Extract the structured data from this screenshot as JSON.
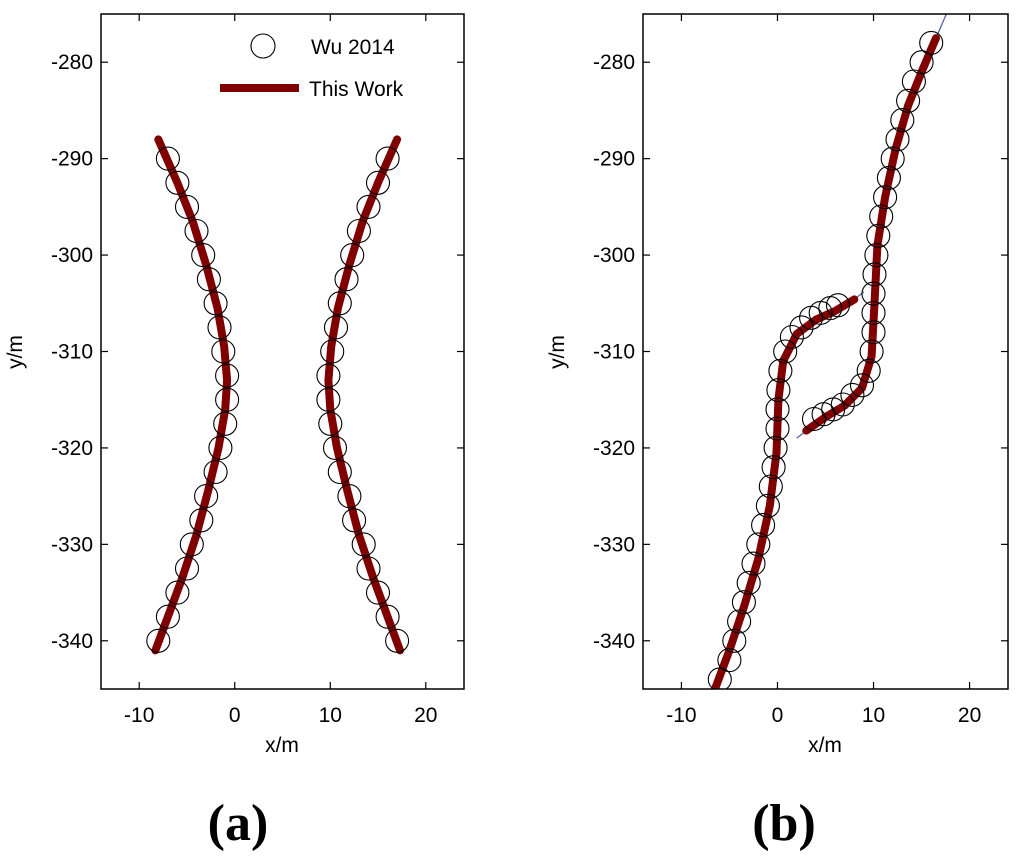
{
  "colors": {
    "this_work": "#800000",
    "thin_line": "#5566aa",
    "marker_edge": "#000000"
  },
  "chart_data": [
    {
      "type": "line",
      "panel_caption": "(a)",
      "xlabel": "x/m",
      "ylabel": "y/m",
      "xlim": [
        -14,
        24
      ],
      "ylim": [
        -345,
        -275
      ],
      "xticks": [
        -10,
        0,
        10,
        20
      ],
      "yticks": [
        -340,
        -330,
        -320,
        -310,
        -300,
        -290,
        -280
      ],
      "xtick_labels": [
        "-10",
        "0",
        "10",
        "20"
      ],
      "ytick_labels": [
        "-340",
        "-330",
        "-320",
        "-310",
        "-300",
        "-290",
        "-280"
      ],
      "legend": {
        "placement": "top-right",
        "entries": [
          "Wu 2014",
          "This Work"
        ]
      },
      "series": [
        {
          "name": "Wu 2014",
          "style": "markers",
          "points": [
            [
              -8,
              -340
            ],
            [
              -7,
              -337.5
            ],
            [
              -6,
              -335
            ],
            [
              -5,
              -332.5
            ],
            [
              -4.5,
              -330
            ],
            [
              -3.5,
              -327.5
            ],
            [
              -3,
              -325
            ],
            [
              -2,
              -322.5
            ],
            [
              -1.5,
              -320
            ],
            [
              -1,
              -317.5
            ],
            [
              -0.8,
              -315
            ],
            [
              -0.8,
              -312.5
            ],
            [
              -1.2,
              -310
            ],
            [
              -1.6,
              -307.5
            ],
            [
              -2,
              -305
            ],
            [
              -2.7,
              -302.5
            ],
            [
              -3.3,
              -300
            ],
            [
              -4,
              -297.5
            ],
            [
              -5,
              -295
            ],
            [
              -6,
              -292.5
            ],
            [
              -7,
              -290
            ],
            [
              17,
              -340
            ],
            [
              16,
              -337.5
            ],
            [
              15,
              -335
            ],
            [
              14,
              -332.5
            ],
            [
              13.5,
              -330
            ],
            [
              12.5,
              -327.5
            ],
            [
              12,
              -325
            ],
            [
              11,
              -322.5
            ],
            [
              10.5,
              -320
            ],
            [
              10,
              -317.5
            ],
            [
              9.8,
              -315
            ],
            [
              9.8,
              -312.5
            ],
            [
              10.2,
              -310
            ],
            [
              10.6,
              -307.5
            ],
            [
              11,
              -305
            ],
            [
              11.7,
              -302.5
            ],
            [
              12.3,
              -300
            ],
            [
              13,
              -297.5
            ],
            [
              14,
              -295
            ],
            [
              15,
              -292.5
            ],
            [
              16,
              -290
            ]
          ]
        },
        {
          "name": "This Work",
          "style": "thick-line",
          "segments": [
            [
              [
                -8.3,
                -341
              ],
              [
                -7,
                -337.5
              ],
              [
                -5.5,
                -333.5
              ],
              [
                -4,
                -329
              ],
              [
                -2.8,
                -324.5
              ],
              [
                -1.7,
                -320
              ],
              [
                -1,
                -316
              ],
              [
                -0.8,
                -313
              ],
              [
                -1.1,
                -309.5
              ],
              [
                -1.8,
                -305.5
              ],
              [
                -3,
                -301
              ],
              [
                -4.4,
                -296.5
              ],
              [
                -6,
                -292.5
              ],
              [
                -8,
                -288
              ]
            ],
            [
              [
                17.3,
                -341
              ],
              [
                16,
                -337.5
              ],
              [
                14.5,
                -333.5
              ],
              [
                13,
                -329
              ],
              [
                11.8,
                -324.5
              ],
              [
                10.7,
                -320
              ],
              [
                10,
                -316
              ],
              [
                9.8,
                -313
              ],
              [
                10.1,
                -309.5
              ],
              [
                10.8,
                -305.5
              ],
              [
                12,
                -301
              ],
              [
                13.4,
                -296.5
              ],
              [
                15,
                -292.5
              ],
              [
                17,
                -288
              ]
            ]
          ]
        }
      ]
    },
    {
      "type": "line",
      "panel_caption": "(b)",
      "xlabel": "x/m",
      "ylabel": "y/m",
      "xlim": [
        -14,
        24
      ],
      "ylim": [
        -345,
        -275
      ],
      "xticks": [
        -10,
        0,
        10,
        20
      ],
      "yticks": [
        -340,
        -330,
        -320,
        -310,
        -300,
        -290,
        -280
      ],
      "xtick_labels": [
        "-10",
        "0",
        "10",
        "20"
      ],
      "ytick_labels": [
        "-340",
        "-330",
        "-320",
        "-310",
        "-300",
        "-290",
        "-280"
      ],
      "series": [
        {
          "name": "Wu 2014",
          "style": "markers",
          "points": [
            [
              -6,
              -344
            ],
            [
              -5,
              -342
            ],
            [
              -4.5,
              -340
            ],
            [
              -4,
              -338
            ],
            [
              -3.5,
              -336
            ],
            [
              -3,
              -334
            ],
            [
              -2.5,
              -332
            ],
            [
              -2,
              -330
            ],
            [
              -1.5,
              -328
            ],
            [
              -1,
              -326
            ],
            [
              -0.7,
              -324
            ],
            [
              -0.4,
              -322
            ],
            [
              -0.2,
              -320
            ],
            [
              0,
              -318
            ],
            [
              0,
              -316
            ],
            [
              0.1,
              -314
            ],
            [
              0.3,
              -312
            ],
            [
              0.8,
              -310
            ],
            [
              1.5,
              -308.5
            ],
            [
              2.5,
              -307.5
            ],
            [
              3.5,
              -306.5
            ],
            [
              4.5,
              -306
            ],
            [
              5.5,
              -305.5
            ],
            [
              6.3,
              -305.2
            ],
            [
              3.8,
              -317
            ],
            [
              4.8,
              -316.5
            ],
            [
              5.8,
              -316
            ],
            [
              6.8,
              -315.5
            ],
            [
              7.8,
              -314.5
            ],
            [
              8.8,
              -313.5
            ],
            [
              9.5,
              -312
            ],
            [
              9.8,
              -310
            ],
            [
              10,
              -308
            ],
            [
              10,
              -306
            ],
            [
              10,
              -304
            ],
            [
              10.1,
              -302
            ],
            [
              10.3,
              -300
            ],
            [
              10.5,
              -298
            ],
            [
              10.8,
              -296
            ],
            [
              11.2,
              -294
            ],
            [
              11.6,
              -292
            ],
            [
              12,
              -290
            ],
            [
              12.5,
              -288
            ],
            [
              13,
              -286
            ],
            [
              13.6,
              -284
            ],
            [
              14.2,
              -282
            ],
            [
              15,
              -280
            ],
            [
              16,
              -278
            ]
          ]
        },
        {
          "name": "This Work",
          "style": "thick-line",
          "segments": [
            [
              [
                -6.5,
                -345
              ],
              [
                -5,
                -341
              ],
              [
                -3.5,
                -336.5
              ],
              [
                -2,
                -331.5
              ],
              [
                -0.8,
                -326
              ],
              [
                -0.1,
                -320.5
              ],
              [
                0.1,
                -315
              ],
              [
                0.6,
                -311
              ],
              [
                2,
                -308.2
              ],
              [
                4,
                -306.7
              ],
              [
                6,
                -305.8
              ],
              [
                8,
                -304.6
              ]
            ],
            [
              [
                3,
                -318.2
              ],
              [
                5,
                -316.8
              ],
              [
                7,
                -315.6
              ],
              [
                8.8,
                -313.8
              ],
              [
                9.8,
                -310.5
              ],
              [
                10.1,
                -305
              ],
              [
                10.4,
                -299
              ],
              [
                11.2,
                -294
              ],
              [
                12.3,
                -289
              ],
              [
                13.6,
                -284.5
              ],
              [
                15,
                -281
              ],
              [
                16.5,
                -277.5
              ]
            ]
          ]
        },
        {
          "name": "",
          "style": "thin-line",
          "segments": [
            [
              [
                -7,
                -346
              ],
              [
                -6.5,
                -345
              ]
            ],
            [
              [
                8,
                -304.6
              ],
              [
                9,
                -303.8
              ]
            ],
            [
              [
                2,
                -319
              ],
              [
                3,
                -318.2
              ]
            ],
            [
              [
                16.5,
                -277.5
              ],
              [
                17.8,
                -274.5
              ]
            ]
          ]
        }
      ]
    }
  ]
}
